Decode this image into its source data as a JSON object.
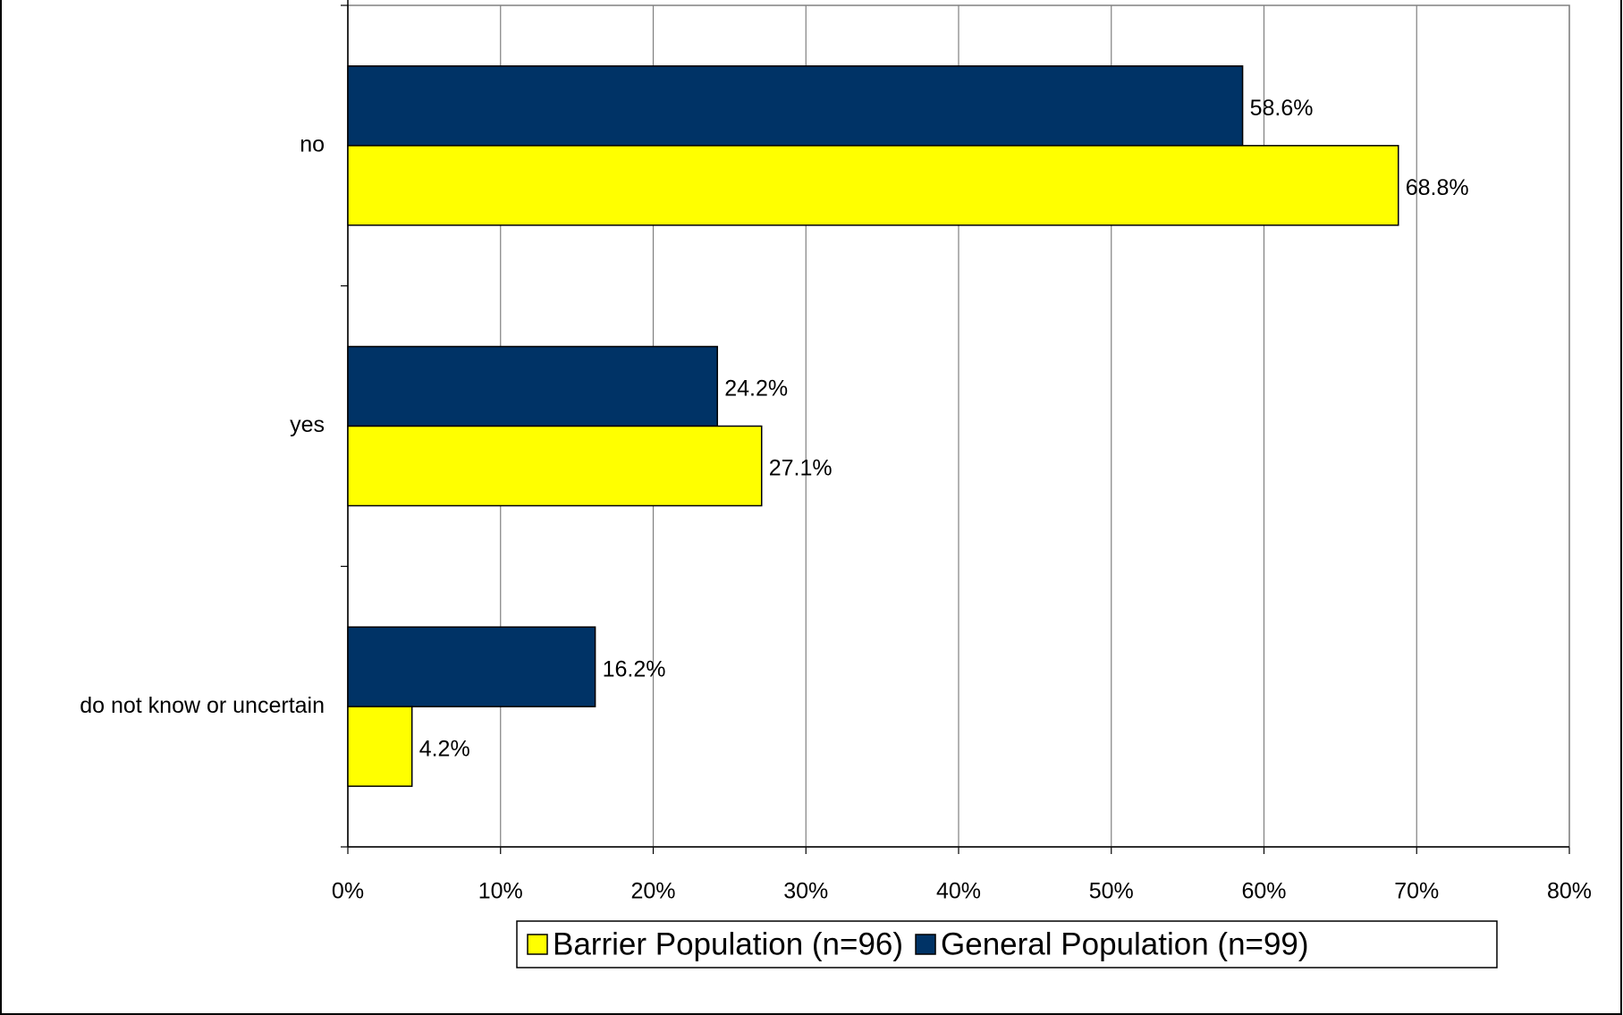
{
  "chart_data": {
    "type": "hbar",
    "categories": [
      "no",
      "yes",
      "do not know or uncertain"
    ],
    "series": [
      {
        "name": "Barrier Population (n=96)",
        "color": "#ffff00",
        "values": [
          68.8,
          27.1,
          4.2
        ],
        "value_labels": [
          "68.8%",
          "27.1%",
          "4.2%"
        ]
      },
      {
        "name": "General Population (n=99)",
        "color": "#003366",
        "values": [
          58.6,
          24.2,
          16.2
        ],
        "value_labels": [
          "58.6%",
          "24.2%",
          "16.2%"
        ]
      }
    ],
    "xlim": [
      0,
      80
    ],
    "xticks": [
      {
        "value": 0,
        "label": "0%"
      },
      {
        "value": 10,
        "label": "10%"
      },
      {
        "value": 20,
        "label": "20%"
      },
      {
        "value": 30,
        "label": "30%"
      },
      {
        "value": 40,
        "label": "40%"
      },
      {
        "value": 50,
        "label": "50%"
      },
      {
        "value": 60,
        "label": "60%"
      },
      {
        "value": 70,
        "label": "70%"
      },
      {
        "value": 80,
        "label": "80%"
      }
    ],
    "grid": true,
    "legend": "bottom"
  }
}
